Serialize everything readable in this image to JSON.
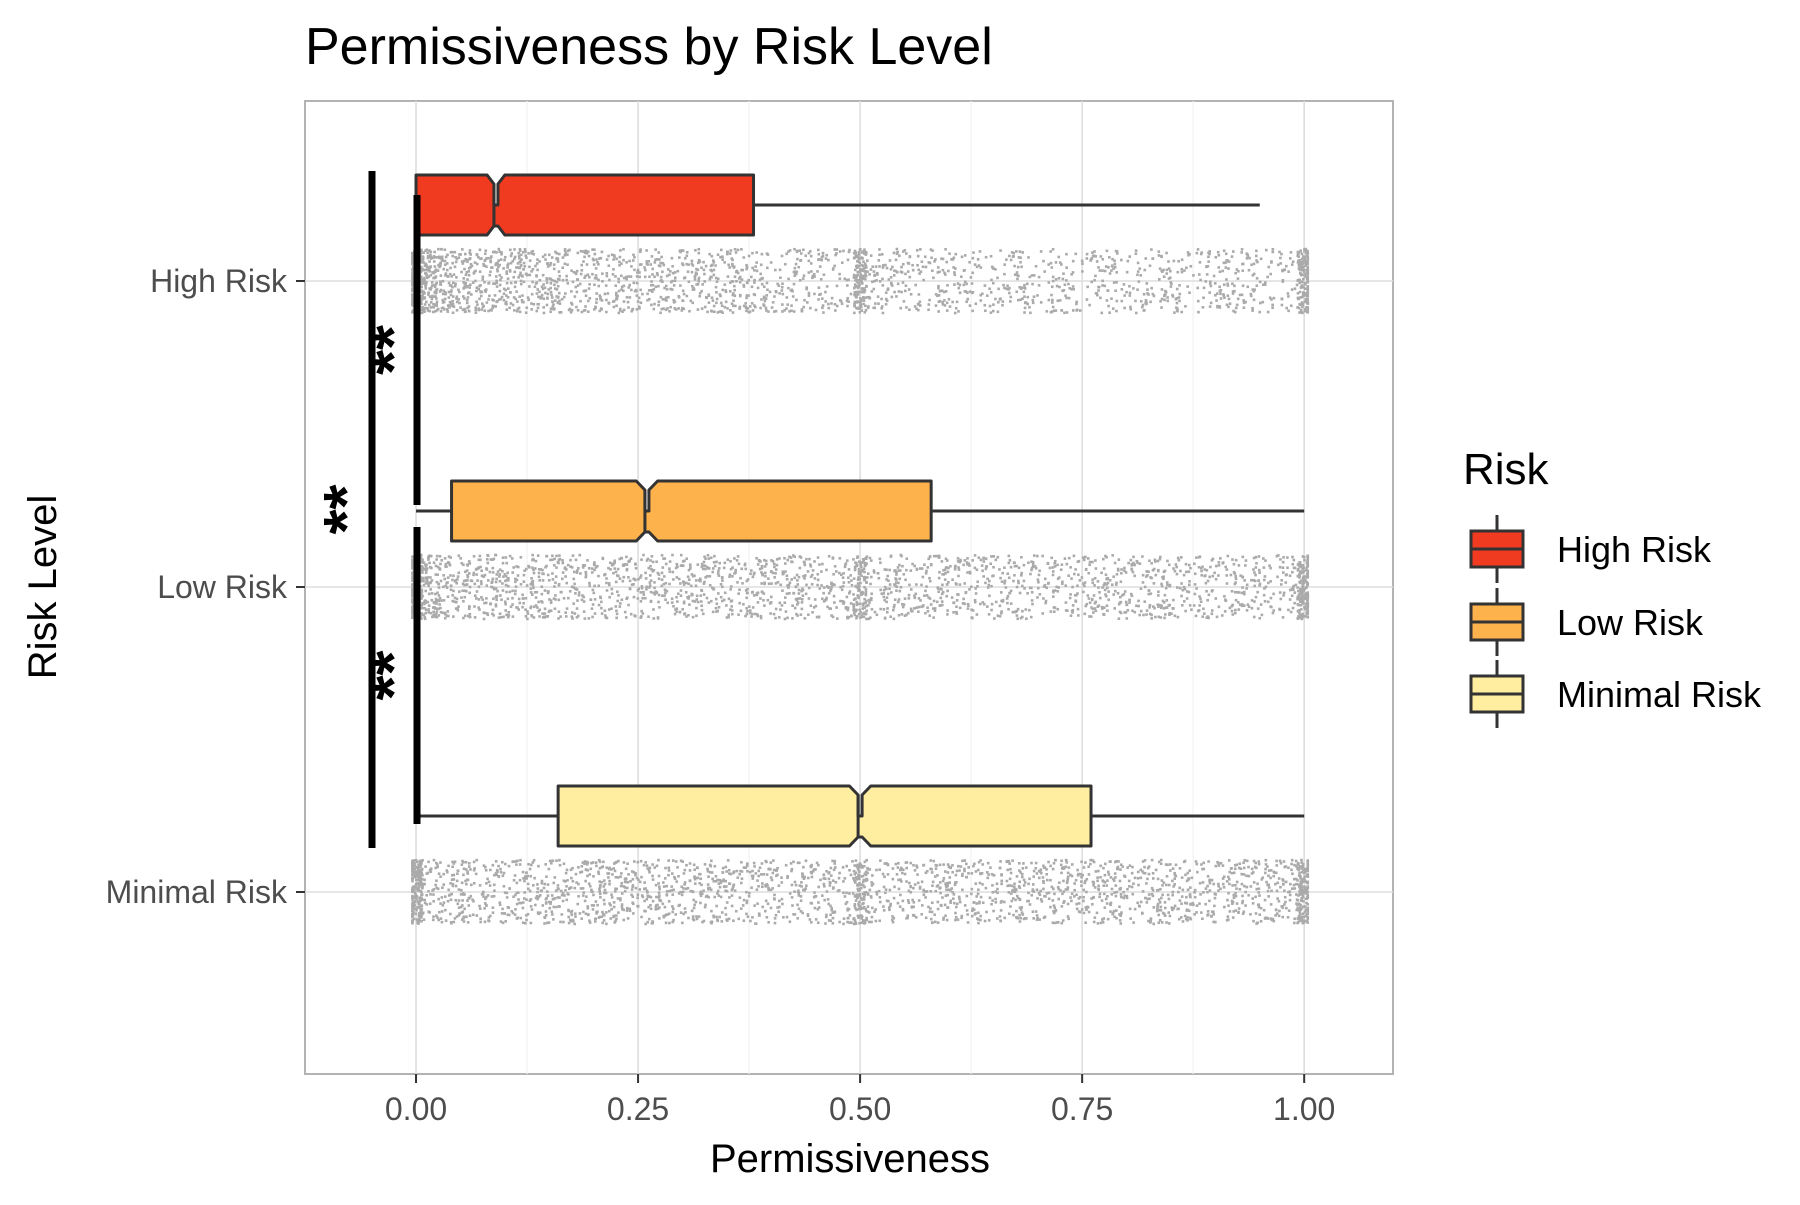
{
  "chart_data": {
    "type": "boxplot",
    "title": "Permissiveness by Risk Level",
    "xlabel": "Permissiveness",
    "ylabel": "Risk Level",
    "xlim": [
      -0.125,
      1.1
    ],
    "xticks": [
      {
        "value": 0.0,
        "label": "0.00"
      },
      {
        "value": 0.25,
        "label": "0.25"
      },
      {
        "value": 0.5,
        "label": "0.50"
      },
      {
        "value": 0.75,
        "label": "0.75"
      },
      {
        "value": 1.0,
        "label": "1.00"
      }
    ],
    "grid": true,
    "orientation": "horizontal",
    "categories": [
      "High Risk",
      "Low Risk",
      "Minimal Risk"
    ],
    "series": [
      {
        "name": "High Risk",
        "color": "#F03B20",
        "whisker_low": 0.0,
        "q1": 0.0,
        "median": 0.09,
        "q3": 0.38,
        "whisker_high": 0.95,
        "notch_half_width": 0.01
      },
      {
        "name": "Low Risk",
        "color": "#FEB24C",
        "whisker_low": 0.0,
        "q1": 0.04,
        "median": 0.26,
        "q3": 0.58,
        "whisker_high": 1.0,
        "notch_half_width": 0.012
      },
      {
        "name": "Minimal Risk",
        "color": "#FFEDA0",
        "whisker_low": 0.0,
        "q1": 0.16,
        "median": 0.5,
        "q3": 0.76,
        "whisker_high": 1.0,
        "notch_half_width": 0.012
      }
    ],
    "jitter_points": {
      "color": "#AAAAAA",
      "range": [
        0.0,
        1.0
      ],
      "note_clusters": [
        0.0,
        0.5,
        1.0
      ]
    },
    "significance": [
      {
        "from": "High Risk",
        "to": "Low Risk",
        "label": "**"
      },
      {
        "from": "Low Risk",
        "to": "Minimal Risk",
        "label": "**"
      },
      {
        "from": "High Risk",
        "to": "Minimal Risk",
        "label": "**"
      }
    ],
    "legend": {
      "title": "Risk",
      "placement": "right",
      "entries": [
        "High Risk",
        "Low Risk",
        "Minimal Risk"
      ]
    }
  }
}
